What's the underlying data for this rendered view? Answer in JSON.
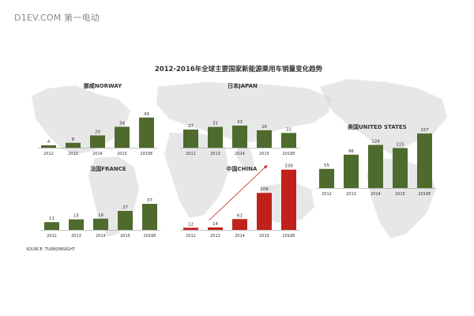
{
  "watermark": "D1EV.COM 第一电动",
  "source": "SOURCE: TURBOINSIGHT",
  "colors": {
    "green": "#4e6a2c",
    "red": "#c0221b",
    "map": "#d3d3d3",
    "text": "#333333"
  },
  "chart_data": {
    "title": "2012-2016年全球主要国家新能源乘用车销量变化趋势",
    "charts": [
      {
        "type": "bar",
        "title": "挪威NORWAY",
        "categories": [
          "2012",
          "2013",
          "2014",
          "2015",
          "2016E"
        ],
        "values": [
          4,
          8,
          20,
          34,
          49
        ]
      },
      {
        "type": "bar",
        "title": "日本JAPAN",
        "categories": [
          "2012",
          "2013",
          "2014",
          "2015",
          "2016E"
        ],
        "values": [
          27,
          31,
          33,
          26,
          22
        ]
      },
      {
        "type": "bar",
        "title": "美国UNITED STATES",
        "categories": [
          "2012",
          "2013",
          "2014",
          "2015",
          "2016E"
        ],
        "values": [
          55,
          96,
          124,
          115,
          157
        ]
      },
      {
        "type": "bar",
        "title": "法国FRANCE",
        "categories": [
          "2012",
          "2013",
          "2014",
          "2015",
          "2016E"
        ],
        "values": [
          11,
          15,
          16,
          27,
          37
        ]
      },
      {
        "type": "bar",
        "title": "中国CHINA",
        "categories": [
          "2012",
          "2013",
          "2014",
          "2015",
          "2016E"
        ],
        "values": [
          12,
          14,
          61,
          208,
          339
        ],
        "trend_arrow": true
      }
    ]
  }
}
